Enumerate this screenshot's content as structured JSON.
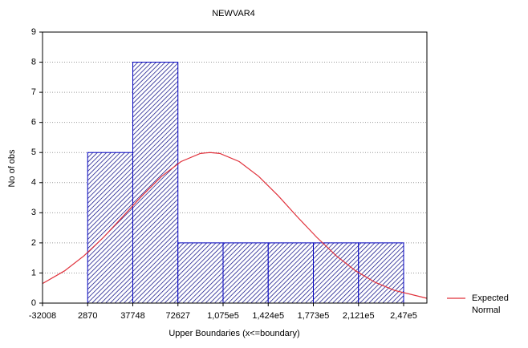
{
  "chart_data": {
    "type": "histogram",
    "title": "NEWVAR4",
    "xlabel": "Upper Boundaries (x<=boundary)",
    "ylabel": "No of obs",
    "bins": [
      2870,
      37748,
      72627,
      107505,
      142384,
      177262,
      212141,
      247019
    ],
    "counts": [
      5,
      8,
      2,
      2,
      2,
      2,
      2
    ],
    "color": "#0000c0",
    "xlim": [
      -32008,
      265000
    ],
    "xticks": [
      -32008,
      2870,
      37748,
      72627,
      {
        "value": 107505,
        "label": "1,075e5"
      },
      {
        "value": 142384,
        "label": "1,424e5"
      },
      {
        "value": 177262,
        "label": "1,773e5"
      },
      {
        "value": 212141,
        "label": "2,121e5"
      },
      {
        "value": 247019,
        "label": "2,47e5"
      }
    ],
    "ylim": [
      0,
      9
    ],
    "yticks": [
      0,
      1,
      2,
      3,
      4,
      5,
      6,
      7,
      8,
      9
    ],
    "grid": true,
    "series": [
      {
        "name": "Expected Normal",
        "color": "#e0303a",
        "x": [
          -32008,
          -15000,
          0,
          15000,
          30000,
          45000,
          60000,
          75000,
          90000,
          97467,
          105000,
          120000,
          135000,
          150000,
          165000,
          180000,
          195000,
          210000,
          225000,
          240000,
          265000
        ],
        "values": [
          0.65,
          1.07,
          1.57,
          2.18,
          2.87,
          3.57,
          4.21,
          4.7,
          4.97,
          5,
          4.97,
          4.7,
          4.21,
          3.57,
          2.86,
          2.18,
          1.57,
          1.07,
          0.69,
          0.42,
          0.16
        ]
      }
    ],
    "legend": "right"
  }
}
